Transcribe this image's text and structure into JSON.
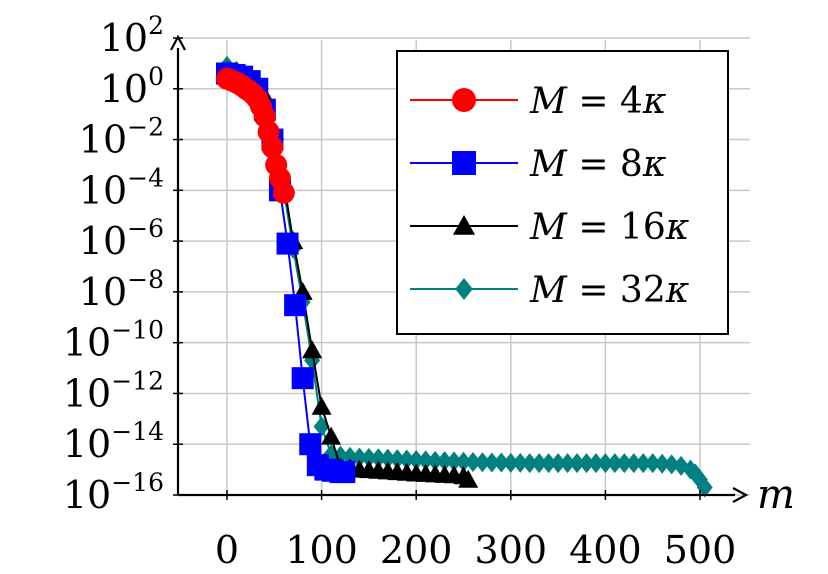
{
  "chart_data": {
    "type": "line",
    "title": "",
    "xlabel": "m",
    "ylabel": "",
    "y_scale": "log",
    "xlim": [
      -55,
      545
    ],
    "ylim": [
      1e-16,
      100
    ],
    "grid": true,
    "legend_position": "top-right",
    "x_ticks": [
      "0",
      "100",
      "200",
      "300",
      "400",
      "500"
    ],
    "y_ticks": [
      {
        "base": "10",
        "exp": "2"
      },
      {
        "base": "10",
        "exp": "0"
      },
      {
        "base": "10",
        "exp": "−2"
      },
      {
        "base": "10",
        "exp": "−4"
      },
      {
        "base": "10",
        "exp": "−6"
      },
      {
        "base": "10",
        "exp": "−8"
      },
      {
        "base": "10",
        "exp": "−10"
      },
      {
        "base": "10",
        "exp": "−12"
      },
      {
        "base": "10",
        "exp": "−14"
      },
      {
        "base": "10",
        "exp": "−16"
      }
    ],
    "series": [
      {
        "name": "M = 4κ",
        "name_main": "M",
        "name_eq": " = 4",
        "name_kappa": "κ",
        "color": "#ff0000",
        "marker": "circle",
        "x": [
          0,
          4,
          8,
          12,
          16,
          20,
          24,
          28,
          32,
          36,
          40,
          44,
          48,
          52,
          56,
          60
        ],
        "y": [
          2.5,
          2.2,
          1.9,
          1.6,
          1.3,
          1.0,
          0.8,
          0.6,
          0.4,
          0.2,
          0.08,
          0.02,
          0.005,
          0.001,
          0.0003,
          8e-05
        ]
      },
      {
        "name": "M = 8κ",
        "name_main": "M",
        "name_eq": " = 8",
        "name_kappa": "κ",
        "color": "#0000ff",
        "marker": "square",
        "x": [
          0,
          8,
          16,
          24,
          32,
          40,
          48,
          56,
          64,
          72,
          80,
          88,
          96,
          104,
          112,
          120,
          124
        ],
        "y": [
          4,
          3.5,
          3,
          2,
          1,
          0.15,
          0.01,
          0.0001,
          8e-07,
          3e-09,
          4e-12,
          1e-14,
          1.5e-15,
          1e-15,
          9e-16,
          8e-16,
          8e-16
        ]
      },
      {
        "name": "M = 16κ",
        "name_main": "M",
        "name_eq": " = 16",
        "name_kappa": "κ",
        "color": "#000000",
        "marker": "triangle",
        "x": [
          0,
          10,
          20,
          30,
          40,
          50,
          60,
          70,
          80,
          90,
          100,
          110,
          120,
          130,
          140,
          150,
          160,
          170,
          180,
          190,
          200,
          210,
          220,
          230,
          240,
          250,
          255
        ],
        "y": [
          5,
          4,
          3,
          2,
          0.5,
          0.02,
          0.0002,
          1e-06,
          1e-08,
          5e-11,
          3e-13,
          2e-14,
          1.2e-15,
          1.1e-15,
          1e-15,
          9.5e-16,
          9e-16,
          8.5e-16,
          8e-16,
          7.5e-16,
          7e-16,
          6.8e-16,
          6.5e-16,
          6.2e-16,
          6e-16,
          5.5e-16,
          4e-16
        ]
      },
      {
        "name": "M = 32κ",
        "name_main": "M",
        "name_eq": " = 32",
        "name_kappa": "κ",
        "color": "#008080",
        "marker": "diamond",
        "x": [
          0,
          10,
          20,
          30,
          40,
          50,
          60,
          70,
          80,
          90,
          100,
          110,
          120,
          130,
          140,
          150,
          160,
          170,
          180,
          190,
          200,
          210,
          220,
          230,
          240,
          250,
          260,
          270,
          280,
          290,
          300,
          310,
          320,
          330,
          340,
          350,
          360,
          370,
          380,
          390,
          400,
          410,
          420,
          430,
          440,
          450,
          460,
          470,
          480,
          490,
          495,
          500,
          505
        ],
        "y": [
          8,
          5,
          3,
          1.5,
          0.3,
          0.01,
          0.0001,
          5e-07,
          4e-09,
          2e-11,
          5e-14,
          4e-15,
          3.5e-15,
          3.2e-15,
          3e-15,
          2.9e-15,
          2.8e-15,
          2.7e-15,
          2.6e-15,
          2.5e-15,
          2.4e-15,
          2.3e-15,
          2.2e-15,
          2.15e-15,
          2.1e-15,
          2.05e-15,
          2e-15,
          1.95e-15,
          1.9e-15,
          1.9e-15,
          1.85e-15,
          1.85e-15,
          1.8e-15,
          1.8e-15,
          1.8e-15,
          1.8e-15,
          1.8e-15,
          1.8e-15,
          1.8e-15,
          1.8e-15,
          1.8e-15,
          1.8e-15,
          1.8e-15,
          1.8e-15,
          1.8e-15,
          1.8e-15,
          1.7e-15,
          1.6e-15,
          1.4e-15,
          1e-15,
          7e-16,
          4e-16,
          2e-16
        ]
      }
    ]
  }
}
